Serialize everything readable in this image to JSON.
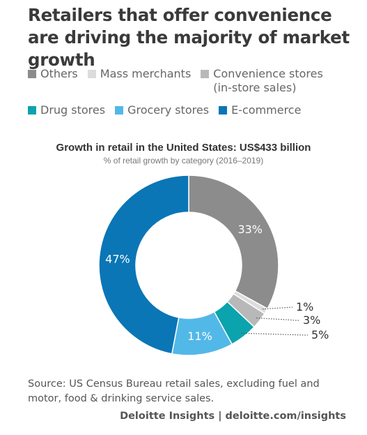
{
  "headline": "Retailers that offer convenience are driving the majority of market growth",
  "source": "Source: US Census Bureau retail sales, excluding fuel and motor, food & drinking service sales.",
  "credit": "Deloitte Insights | deloitte.com/insights",
  "chart_data": {
    "type": "pie",
    "title": "Growth in retail in the United States: US$433 billion",
    "subtitle": "% of retail growth by category (2016–2019)",
    "legend_placement": "top",
    "categories": [
      "Others",
      "Mass merchants",
      "Convenience stores\n(in-store sales)",
      "Drug stores",
      "Grocery stores",
      "E-commerce"
    ],
    "values": [
      33,
      1,
      3,
      5,
      11,
      47
    ],
    "labels": [
      "33%",
      "1%",
      "3%",
      "5%",
      "11%",
      "47%"
    ],
    "colors": [
      "#8c8c8c",
      "#dcdcdc",
      "#b8b8b8",
      "#0ba3ad",
      "#52b8e8",
      "#0a76b6"
    ]
  }
}
